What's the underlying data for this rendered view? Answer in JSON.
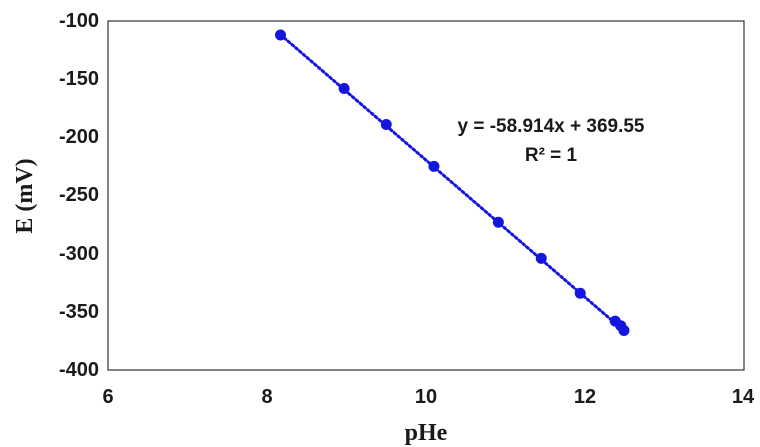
{
  "chart_data": {
    "type": "scatter",
    "xlabel": "pHe",
    "ylabel": "E (mV)",
    "xlim": [
      6,
      14
    ],
    "ylim": [
      -400,
      -100
    ],
    "xticks": [
      "6",
      "8",
      "10",
      "12",
      "14"
    ],
    "yticks": [
      "-100",
      "-150",
      "-200",
      "-250",
      "-300",
      "-350",
      "-400"
    ],
    "grid": false,
    "legend": "none",
    "series": [
      {
        "color": "#1515e0",
        "x": [
          8.17,
          8.97,
          9.5,
          10.1,
          10.91,
          11.45,
          11.94,
          12.38,
          12.45,
          12.49
        ],
        "y": [
          -112,
          -158,
          -189,
          -225,
          -273,
          -304,
          -334,
          -358,
          -362,
          -366
        ]
      }
    ],
    "trendline": {
      "style": "dotted",
      "color": "#1515e0",
      "slope": -58.914,
      "intercept": 369.55,
      "x_range": [
        8.17,
        12.49
      ]
    },
    "annotations": {
      "equation": "y = -58.914x + 369.55",
      "r_squared": "R² = 1"
    }
  }
}
